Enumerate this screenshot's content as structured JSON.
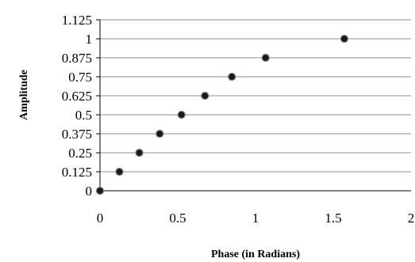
{
  "chart_data": {
    "type": "scatter",
    "title": "",
    "xlabel": "Phase (in Radians)",
    "ylabel": "Amplitude",
    "xlim": [
      0,
      2
    ],
    "ylim": [
      0,
      1.125
    ],
    "x_ticks": [
      "0",
      "0.5",
      "1",
      "1.5",
      "2"
    ],
    "y_ticks": [
      "0",
      "0.125",
      "0.25",
      "0.375",
      "0.5",
      "0.625",
      "0.75",
      "0.875",
      "1",
      "1.125"
    ],
    "grid": "horizontal",
    "legend": "none",
    "series": [
      {
        "points": [
          {
            "x": 0,
            "y": 0
          },
          {
            "x": 0.125,
            "y": 0.125
          },
          {
            "x": 0.253,
            "y": 0.25
          },
          {
            "x": 0.384,
            "y": 0.375
          },
          {
            "x": 0.524,
            "y": 0.5
          },
          {
            "x": 0.675,
            "y": 0.625
          },
          {
            "x": 0.848,
            "y": 0.75
          },
          {
            "x": 1.065,
            "y": 0.875
          },
          {
            "x": 1.571,
            "y": 1
          }
        ]
      }
    ],
    "colors": {
      "marker_fill": "#1a1a1a",
      "marker_edge": "#7f7f7f",
      "gridline": "#8c8c8c",
      "axis": "#000000"
    }
  }
}
